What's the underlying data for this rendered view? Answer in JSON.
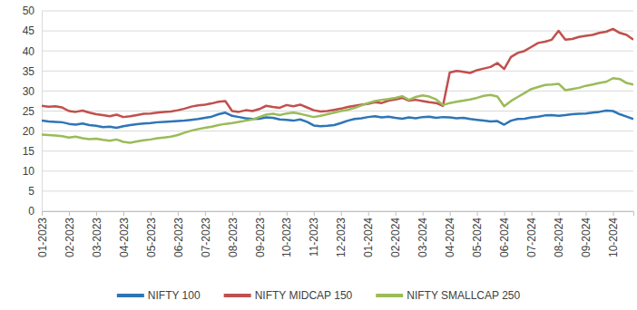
{
  "chart_data": {
    "type": "line",
    "categories": [
      "01-2023",
      null,
      null,
      null,
      "02-2023",
      null,
      null,
      null,
      "03-2023",
      null,
      null,
      null,
      "04-2023",
      null,
      null,
      null,
      "05-2023",
      null,
      null,
      null,
      "06-2023",
      null,
      null,
      null,
      "07-2023",
      null,
      null,
      null,
      "08-2023",
      null,
      null,
      null,
      "09-2023",
      null,
      null,
      null,
      "10-2023",
      null,
      null,
      null,
      "11-2023",
      null,
      null,
      null,
      "12-2023",
      null,
      null,
      null,
      "01-2024",
      null,
      null,
      null,
      "02-2024",
      null,
      null,
      null,
      "03-2024",
      null,
      null,
      null,
      "04-2024",
      null,
      null,
      null,
      "05-2024",
      null,
      null,
      null,
      "06-2024",
      null,
      null,
      null,
      "07-2024",
      null,
      null,
      null,
      "08-2024",
      null,
      null,
      null,
      "09-2024",
      null,
      null,
      null,
      "10-2024",
      null,
      null,
      null
    ],
    "series": [
      {
        "name": "NIFTY 100",
        "color": "#2e75b6",
        "values": [
          22.6,
          22.4,
          22.3,
          22.2,
          21.8,
          21.6,
          21.9,
          21.5,
          21.3,
          21.0,
          21.1,
          20.8,
          21.2,
          21.5,
          21.7,
          21.9,
          22.0,
          22.2,
          22.3,
          22.4,
          22.5,
          22.6,
          22.8,
          23.0,
          23.3,
          23.6,
          24.2,
          24.6,
          23.8,
          23.5,
          23.2,
          23.0,
          23.1,
          23.4,
          23.3,
          22.9,
          22.8,
          22.6,
          22.9,
          22.3,
          21.4,
          21.2,
          21.3,
          21.5,
          22.0,
          22.6,
          23.0,
          23.2,
          23.5,
          23.7,
          23.4,
          23.6,
          23.3,
          23.1,
          23.4,
          23.2,
          23.5,
          23.6,
          23.3,
          23.5,
          23.4,
          23.2,
          23.3,
          23.0,
          22.8,
          22.6,
          22.4,
          22.5,
          21.6,
          22.6,
          23.0,
          23.1,
          23.4,
          23.6,
          23.9,
          24.0,
          23.8,
          24.0,
          24.2,
          24.3,
          24.4,
          24.6,
          24.8,
          25.1,
          25.0,
          24.2,
          23.6,
          23.0
        ]
      },
      {
        "name": "NIFTY MIDCAP 150",
        "color": "#c0504d",
        "values": [
          26.3,
          26.1,
          26.2,
          25.9,
          25.0,
          24.8,
          25.1,
          24.6,
          24.2,
          24.0,
          23.7,
          24.1,
          23.5,
          23.7,
          24.0,
          24.3,
          24.4,
          24.6,
          24.8,
          24.9,
          25.2,
          25.6,
          26.1,
          26.4,
          26.6,
          26.9,
          27.3,
          27.5,
          25.0,
          24.8,
          25.2,
          25.0,
          25.5,
          26.3,
          26.0,
          25.8,
          26.5,
          26.2,
          26.6,
          25.9,
          25.2,
          24.9,
          25.0,
          25.3,
          25.6,
          26.0,
          26.3,
          26.6,
          26.8,
          27.2,
          27.0,
          27.6,
          27.9,
          28.3,
          27.6,
          27.8,
          27.5,
          27.2,
          27.0,
          26.3,
          34.6,
          35.0,
          34.8,
          34.5,
          35.2,
          35.6,
          36.0,
          37.0,
          35.5,
          38.5,
          39.5,
          40.0,
          41.0,
          42.0,
          42.3,
          42.8,
          45.0,
          42.8,
          43.0,
          43.5,
          43.8,
          44.0,
          44.5,
          44.8,
          45.5,
          44.5,
          44.0,
          42.8
        ]
      },
      {
        "name": "NIFTY SMALLCAP 250",
        "color": "#9bbb59",
        "values": [
          19.1,
          19.0,
          18.9,
          18.7,
          18.4,
          18.6,
          18.2,
          18.0,
          18.1,
          17.8,
          17.6,
          17.9,
          17.3,
          17.1,
          17.4,
          17.7,
          17.9,
          18.2,
          18.4,
          18.6,
          19.0,
          19.6,
          20.1,
          20.5,
          20.8,
          21.1,
          21.5,
          21.8,
          22.0,
          22.3,
          22.6,
          22.9,
          23.5,
          24.1,
          24.3,
          24.0,
          24.4,
          24.6,
          24.3,
          23.9,
          23.5,
          23.8,
          24.2,
          24.6,
          25.0,
          25.3,
          25.8,
          26.4,
          27.0,
          27.5,
          27.8,
          28.0,
          28.3,
          28.7,
          27.8,
          28.5,
          28.9,
          28.6,
          27.9,
          26.5,
          27.0,
          27.3,
          27.6,
          27.9,
          28.3,
          28.8,
          29.0,
          28.6,
          26.2,
          27.5,
          28.5,
          29.5,
          30.5,
          31.0,
          31.5,
          31.6,
          31.8,
          30.2,
          30.5,
          30.8,
          31.3,
          31.6,
          32.0,
          32.3,
          33.2,
          33.0,
          32.0,
          31.6
        ]
      }
    ],
    "ylim": [
      0,
      50
    ],
    "yticks": [
      0,
      5,
      10,
      15,
      20,
      25,
      30,
      35,
      40,
      45,
      50
    ],
    "grid": true,
    "legend": "bottom"
  }
}
